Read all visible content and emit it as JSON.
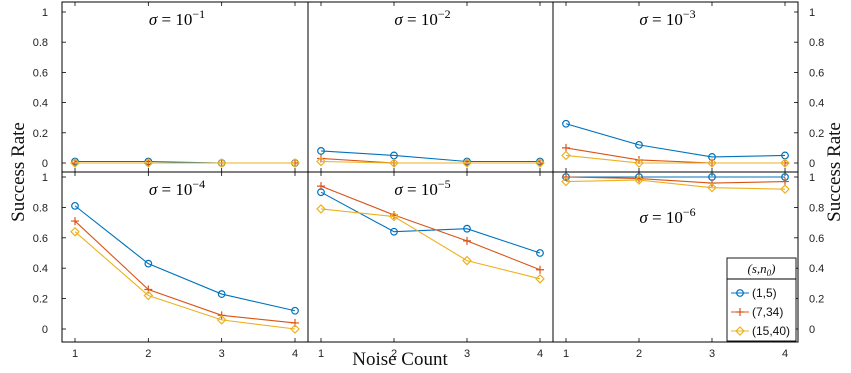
{
  "chart_data": {
    "type": "line",
    "xlabel": "Noise Count",
    "ylabel_left": "Success Rate",
    "ylabel_right": "Success Rate",
    "x": [
      1,
      2,
      3,
      4
    ],
    "x_ticks": [
      "1",
      "2",
      "3",
      "4"
    ],
    "y_ticks": [
      "0",
      "0.2",
      "0.4",
      "0.6",
      "0.8",
      "1"
    ],
    "ylim": [
      0,
      1
    ],
    "grid": false,
    "legend": {
      "title": "(s,n0)",
      "placement": "bottom-right",
      "entries": [
        "(1,5)",
        "(7,34)",
        "(15,40)"
      ]
    },
    "series_styles": [
      {
        "name": "(1,5)",
        "color": "#0072BD",
        "marker": "circle"
      },
      {
        "name": "(7,34)",
        "color": "#D95319",
        "marker": "plus"
      },
      {
        "name": "(15,40)",
        "color": "#EDB120",
        "marker": "diamond"
      }
    ],
    "panels": [
      {
        "sigma_exp": "−1",
        "series": [
          {
            "name": "(1,5)",
            "values": [
              0.01,
              0.01,
              0.0,
              0.0
            ]
          },
          {
            "name": "(7,34)",
            "values": [
              0.0,
              0.0,
              0.0,
              0.0
            ]
          },
          {
            "name": "(15,40)",
            "values": [
              0.0,
              0.0,
              0.0,
              0.0
            ]
          }
        ]
      },
      {
        "sigma_exp": "−2",
        "series": [
          {
            "name": "(1,5)",
            "values": [
              0.08,
              0.05,
              0.01,
              0.01
            ]
          },
          {
            "name": "(7,34)",
            "values": [
              0.03,
              0.0,
              0.0,
              0.0
            ]
          },
          {
            "name": "(15,40)",
            "values": [
              0.01,
              0.0,
              0.0,
              0.0
            ]
          }
        ]
      },
      {
        "sigma_exp": "−3",
        "series": [
          {
            "name": "(1,5)",
            "values": [
              0.26,
              0.12,
              0.04,
              0.05
            ]
          },
          {
            "name": "(7,34)",
            "values": [
              0.1,
              0.02,
              0.0,
              0.0
            ]
          },
          {
            "name": "(15,40)",
            "values": [
              0.05,
              0.0,
              0.0,
              0.0
            ]
          }
        ]
      },
      {
        "sigma_exp": "−4",
        "series": [
          {
            "name": "(1,5)",
            "values": [
              0.81,
              0.43,
              0.23,
              0.12
            ]
          },
          {
            "name": "(7,34)",
            "values": [
              0.71,
              0.26,
              0.09,
              0.04
            ]
          },
          {
            "name": "(15,40)",
            "values": [
              0.64,
              0.22,
              0.06,
              0.0
            ]
          }
        ]
      },
      {
        "sigma_exp": "−5",
        "series": [
          {
            "name": "(1,5)",
            "values": [
              0.9,
              0.64,
              0.66,
              0.5
            ]
          },
          {
            "name": "(7,34)",
            "values": [
              0.94,
              0.75,
              0.58,
              0.39
            ]
          },
          {
            "name": "(15,40)",
            "values": [
              0.79,
              0.74,
              0.45,
              0.33
            ]
          }
        ]
      },
      {
        "sigma_exp": "−6",
        "series": [
          {
            "name": "(1,5)",
            "values": [
              1.0,
              1.0,
              1.0,
              1.0
            ]
          },
          {
            "name": "(7,34)",
            "values": [
              1.0,
              0.99,
              0.96,
              0.97
            ]
          },
          {
            "name": "(15,40)",
            "values": [
              0.97,
              0.98,
              0.93,
              0.92
            ]
          }
        ]
      }
    ]
  }
}
